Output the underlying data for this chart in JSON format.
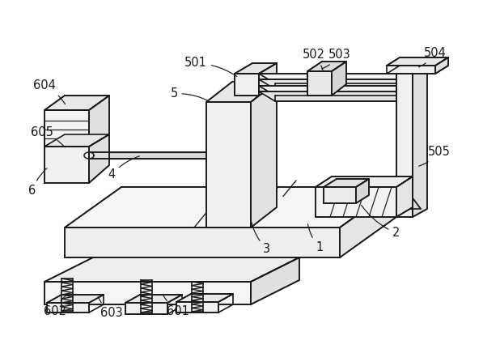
{
  "bg_color": "#ffffff",
  "line_color": "#1a1a1a",
  "lw": 1.2,
  "fig_width": 5.97,
  "fig_height": 4.36,
  "dpi": 100
}
